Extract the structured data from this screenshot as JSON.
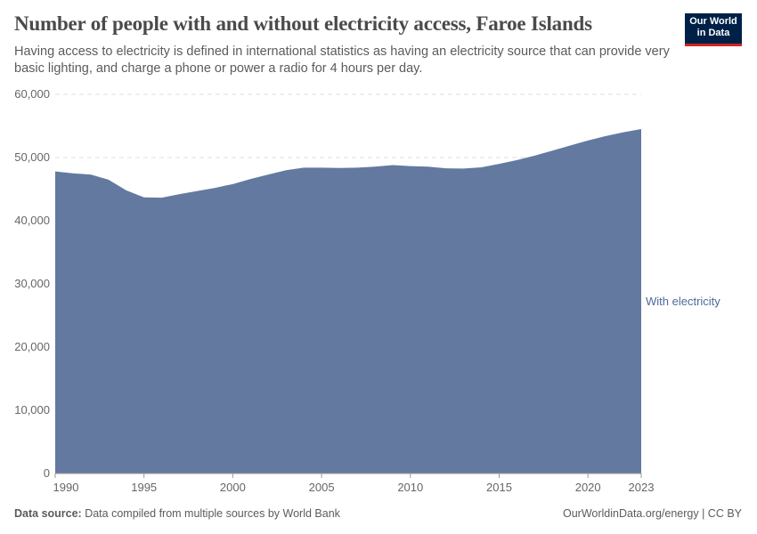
{
  "title": "Number of people with and without electricity access, Faroe Islands",
  "subtitle": "Having access to electricity is defined in international statistics as having an electricity source that can provide very basic lighting, and charge a phone or power a radio for 4 hours per day.",
  "logo": {
    "line1": "Our World",
    "line2": "in Data"
  },
  "footer": {
    "source_label": "Data source:",
    "source_text": " Data compiled from multiple sources by World Bank",
    "right": "OurWorldinData.org/energy | CC BY"
  },
  "chart_data": {
    "type": "area",
    "title": "Number of people with and without electricity access, Faroe Islands",
    "xlim": [
      1990,
      2023
    ],
    "ylim": [
      0,
      60000
    ],
    "grid": true,
    "x_ticks": [
      1990,
      1995,
      2000,
      2005,
      2010,
      2015,
      2020,
      2023
    ],
    "y_ticks": [
      0,
      10000,
      20000,
      30000,
      40000,
      50000,
      60000
    ],
    "y_tick_labels": [
      "0",
      "10,000",
      "20,000",
      "30,000",
      "40,000",
      "50,000",
      "60,000"
    ],
    "colors": {
      "With electricity": "#6379a0"
    },
    "x": [
      1990,
      1991,
      1992,
      1993,
      1994,
      1995,
      1996,
      1997,
      1998,
      1999,
      2000,
      2001,
      2002,
      2003,
      2004,
      2005,
      2006,
      2007,
      2008,
      2009,
      2010,
      2011,
      2012,
      2013,
      2014,
      2015,
      2016,
      2017,
      2018,
      2019,
      2020,
      2021,
      2022,
      2023
    ],
    "series": [
      {
        "name": "With electricity",
        "values": [
          47800,
          47500,
          47300,
          46500,
          44800,
          43700,
          43650,
          44200,
          44700,
          45200,
          45800,
          46600,
          47300,
          48000,
          48400,
          48400,
          48350,
          48400,
          48550,
          48800,
          48650,
          48550,
          48300,
          48250,
          48450,
          49000,
          49600,
          50300,
          51100,
          51900,
          52700,
          53400,
          54000,
          54500
        ]
      }
    ]
  }
}
